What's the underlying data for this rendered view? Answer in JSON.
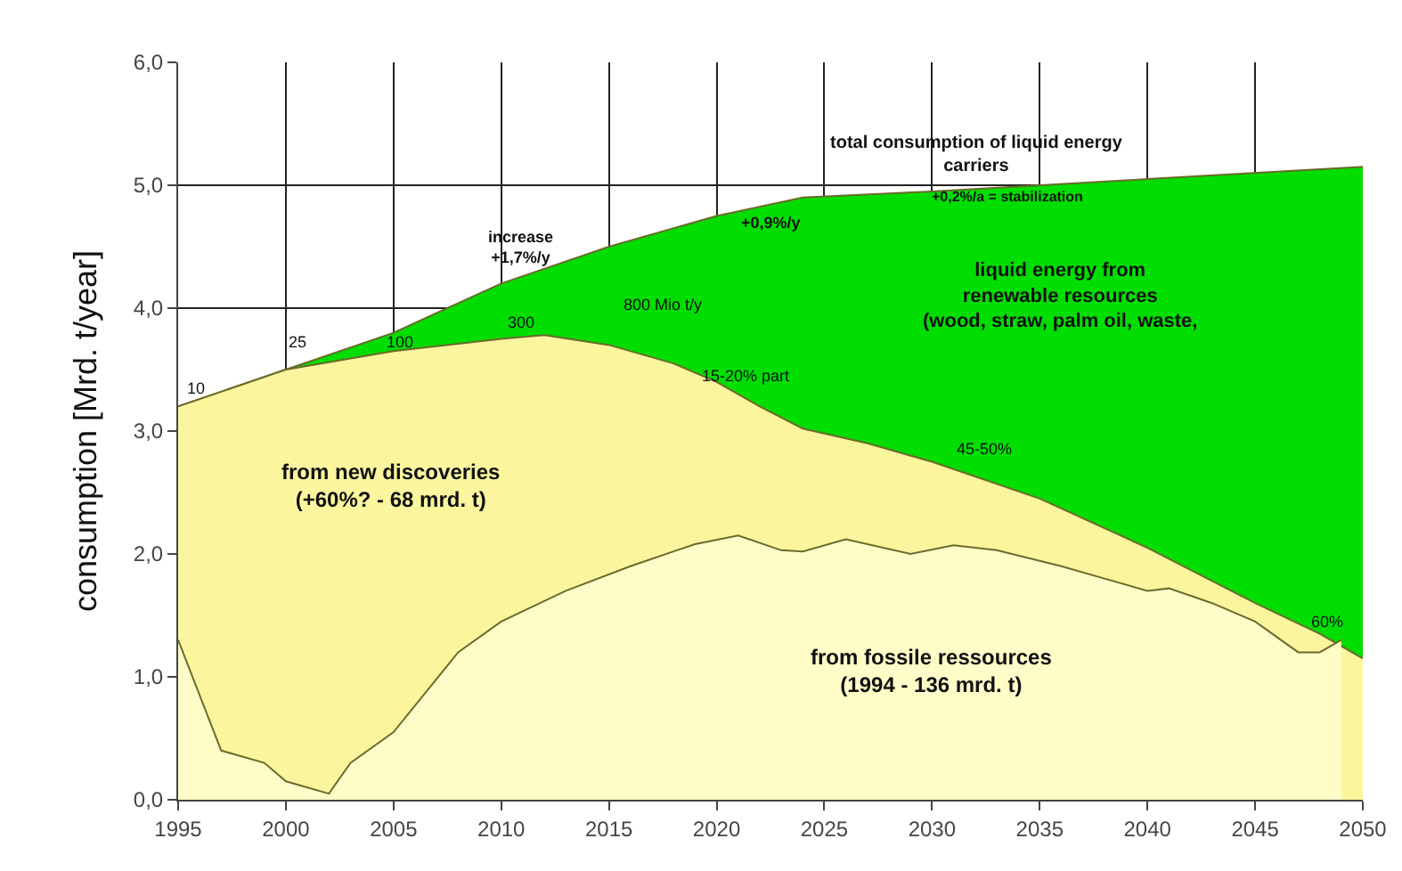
{
  "chart_data": {
    "type": "area",
    "ylabel": "consumption [Mrd. t/year]",
    "xlim": [
      1995,
      2050
    ],
    "xticks": [
      1995,
      2000,
      2005,
      2010,
      2015,
      2020,
      2025,
      2030,
      2035,
      2040,
      2045,
      2050
    ],
    "ylim": [
      0,
      6
    ],
    "yticks": [
      {
        "value": 0,
        "label": "0,0"
      },
      {
        "value": 1,
        "label": "1,0"
      },
      {
        "value": 2,
        "label": "2,0"
      },
      {
        "value": 3,
        "label": "3,0"
      },
      {
        "value": 4,
        "label": "4,0"
      },
      {
        "value": 5,
        "label": "5,0"
      },
      {
        "value": 6,
        "label": "6,0"
      }
    ],
    "grid": true,
    "series": [
      {
        "color": "#00dd00",
        "x": [
          1995,
          2000,
          2005,
          2010,
          2015,
          2020,
          2024,
          2030,
          2040,
          2050
        ],
        "values": [
          3.2,
          3.5,
          3.8,
          4.2,
          4.5,
          4.75,
          4.9,
          4.95,
          5.05,
          5.15
        ]
      },
      {
        "color": "#fbf59e",
        "x": [
          1995,
          2000,
          2005,
          2010,
          2012,
          2015,
          2018,
          2020,
          2022,
          2024,
          2027,
          2030,
          2035,
          2040,
          2045,
          2048,
          2050
        ],
        "values": [
          3.2,
          3.5,
          3.65,
          3.75,
          3.78,
          3.7,
          3.55,
          3.4,
          3.2,
          3.02,
          2.9,
          2.75,
          2.45,
          2.05,
          1.6,
          1.35,
          1.15
        ]
      },
      {
        "color": "#fffcc8",
        "x": [
          1995,
          1997,
          1999,
          2000,
          2002,
          2003,
          2005,
          2008,
          2010,
          2013,
          2016,
          2019,
          2021,
          2023,
          2024,
          2026,
          2029,
          2031,
          2033,
          2036,
          2038,
          2040,
          2041,
          2043,
          2045,
          2047,
          2048,
          2049
        ],
        "values": [
          1.3,
          0.4,
          0.3,
          0.15,
          0.05,
          0.3,
          0.55,
          1.2,
          1.45,
          1.7,
          1.9,
          2.08,
          2.15,
          2.03,
          2.02,
          2.12,
          2.0,
          2.07,
          2.03,
          1.9,
          1.8,
          1.7,
          1.72,
          1.6,
          1.45,
          1.2,
          1.2,
          1.3
        ]
      }
    ],
    "annotations": [
      "10",
      "25",
      "100",
      "300",
      "800 Mio t/y",
      "15-20% part",
      "45-50%",
      "60%",
      "increase\n+1,7%/y",
      "+0,9%/y",
      "total consumption of liquid energy\ncarriers",
      "+0,2%/a = stabilization",
      "liquid energy from\nrenewable resources\n(wood, straw, palm oil, waste,",
      "from new discoveries\n(+60%? - 68 mrd. t)",
      "from fossile ressources\n(1994 - 136 mrd. t)"
    ]
  }
}
